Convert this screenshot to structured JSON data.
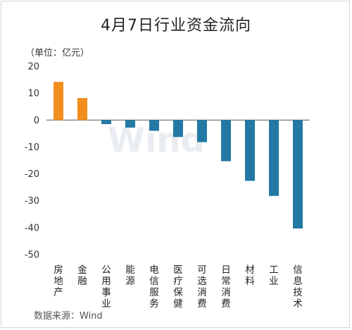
{
  "title": "4月7日行业资金流向",
  "unit_label": "（单位：亿元）",
  "source": "数据来源：Wind",
  "watermark": "Wind",
  "colors": {
    "positive": "#f28e1e",
    "negative": "#2379a4",
    "zero_line": "#555555"
  },
  "chart_data": {
    "type": "bar",
    "title": "4月7日行业资金流向",
    "xlabel": "",
    "ylabel": "（单位：亿元）",
    "ylim": [
      -50,
      20
    ],
    "yticks": [
      20,
      10,
      0,
      -10,
      -20,
      -30,
      -40,
      -50
    ],
    "ytick_labels": [
      "20",
      "10",
      "0",
      "-10",
      "-20",
      "-30",
      "-40",
      "-50"
    ],
    "grid": false,
    "categories": [
      "房地产",
      "金融",
      "公用事业",
      "能源",
      "电信服务",
      "医疗保健",
      "可选消费",
      "日常消费",
      "材料",
      "工业",
      "信息技术"
    ],
    "values": [
      14.2,
      8.2,
      -1.5,
      -2.8,
      -4.0,
      -6.3,
      -8.2,
      -15.3,
      -22.6,
      -28.2,
      -40.3
    ]
  }
}
